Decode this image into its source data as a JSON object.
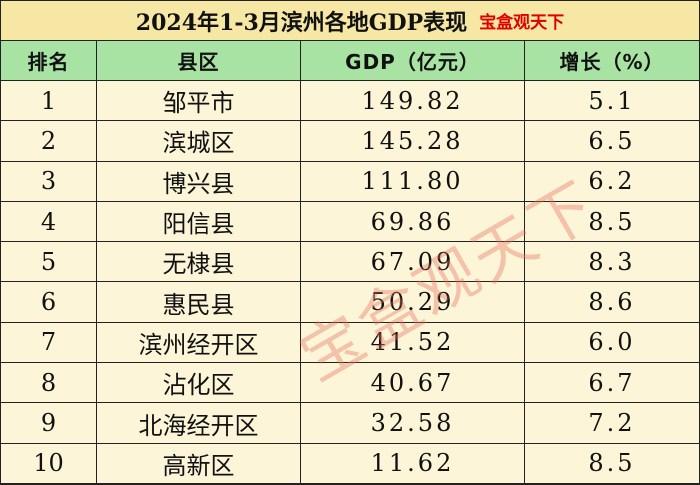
{
  "title": {
    "text": "2024年1-3月滨州各地GDP表现",
    "tag": "宝盒观天下"
  },
  "headers": {
    "rank": "排名",
    "county": "县区",
    "gdp": "GDP（亿元）",
    "growth": "增长（%）"
  },
  "rows": [
    {
      "rank": "1",
      "county": "邹平市",
      "gdp": "149.82",
      "growth": "5.1"
    },
    {
      "rank": "2",
      "county": "滨城区",
      "gdp": "145.28",
      "growth": "6.5"
    },
    {
      "rank": "3",
      "county": "博兴县",
      "gdp": "111.80",
      "growth": "6.2"
    },
    {
      "rank": "4",
      "county": "阳信县",
      "gdp": "69.86",
      "growth": "8.5"
    },
    {
      "rank": "5",
      "county": "无棣县",
      "gdp": "67.09",
      "growth": "8.3"
    },
    {
      "rank": "6",
      "county": "惠民县",
      "gdp": "50.29",
      "growth": "8.6"
    },
    {
      "rank": "7",
      "county": "滨州经开区",
      "gdp": "41.52",
      "growth": "6.0"
    },
    {
      "rank": "8",
      "county": "沾化区",
      "gdp": "40.67",
      "growth": "6.7"
    },
    {
      "rank": "9",
      "county": "北海经开区",
      "gdp": "32.58",
      "growth": "7.2"
    },
    {
      "rank": "10",
      "county": "高新区",
      "gdp": "11.62",
      "growth": "8.5"
    }
  ],
  "watermark": "宝盒观天下",
  "colors": {
    "title_bg": "#f6e7a4",
    "header_bg": "#a8e3a4",
    "body_bg": "#fcf5d8",
    "tag_red": "#e00000"
  }
}
